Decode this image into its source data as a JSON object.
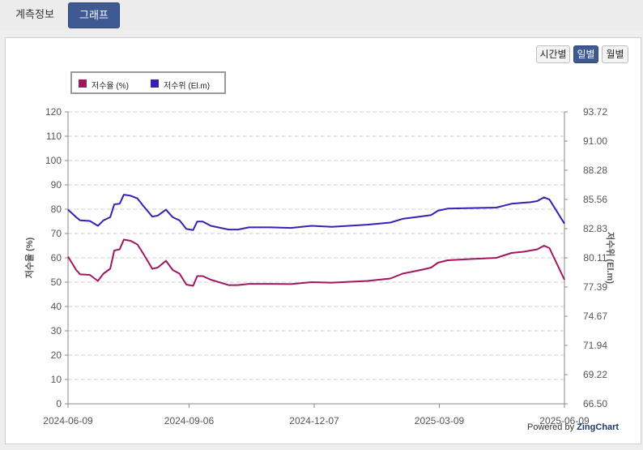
{
  "tabs": [
    {
      "label": "계측정보",
      "active": false
    },
    {
      "label": "그래프",
      "active": true
    }
  ],
  "period_buttons": [
    {
      "label": "시간별",
      "active": false
    },
    {
      "label": "일별",
      "active": true
    },
    {
      "label": "월별",
      "active": false
    }
  ],
  "powered_by": {
    "prefix": "Powered by",
    "brand": "ZingChart"
  },
  "colors": {
    "storage": "#a0175f",
    "level": "#3521b3",
    "active_tab": "#3f5a92"
  },
  "chart_data": {
    "type": "line",
    "legend_position": "top-left",
    "grid": true,
    "x_ticks": [
      "2024-06-09",
      "2024-09-06",
      "2024-12-07",
      "2025-03-09",
      "2025-06-09"
    ],
    "x_range": [
      "2024-06-09",
      "2025-06-09"
    ],
    "y_left": {
      "label": "저수율 (%)",
      "range": [
        0,
        120
      ],
      "ticks": [
        "0",
        "10",
        "20",
        "30",
        "40",
        "50",
        "60",
        "70",
        "80",
        "90",
        "100",
        "110",
        "120"
      ]
    },
    "y_right": {
      "label": "저수위 (El.m)",
      "range": [
        66.5,
        93.72
      ],
      "ticks": [
        "66.50",
        "69.22",
        "71.94",
        "74.67",
        "77.39",
        "80.11",
        "82.83",
        "85.56",
        "88.28",
        "91.00",
        "93.72"
      ]
    },
    "series": [
      {
        "name": "저수율 (%)",
        "axis": "left",
        "points": [
          [
            "2024-06-09",
            60.5
          ],
          [
            "2024-06-15",
            55
          ],
          [
            "2024-06-18",
            53.2
          ],
          [
            "2024-06-25",
            53
          ],
          [
            "2024-07-01",
            50.5
          ],
          [
            "2024-07-05",
            53.5
          ],
          [
            "2024-07-10",
            55.5
          ],
          [
            "2024-07-13",
            63
          ],
          [
            "2024-07-17",
            63.5
          ],
          [
            "2024-07-20",
            67.5
          ],
          [
            "2024-07-25",
            67
          ],
          [
            "2024-07-30",
            65.5
          ],
          [
            "2024-08-03",
            62
          ],
          [
            "2024-08-10",
            55.5
          ],
          [
            "2024-08-14",
            56
          ],
          [
            "2024-08-20",
            58.8
          ],
          [
            "2024-08-25",
            55
          ],
          [
            "2024-08-30",
            53.5
          ],
          [
            "2024-09-04",
            49
          ],
          [
            "2024-09-09",
            48.5
          ],
          [
            "2024-09-12",
            52.5
          ],
          [
            "2024-09-16",
            52.5
          ],
          [
            "2024-09-22",
            51
          ],
          [
            "2024-10-05",
            48.8
          ],
          [
            "2024-10-12",
            48.8
          ],
          [
            "2024-10-20",
            49.3
          ],
          [
            "2024-11-05",
            49.3
          ],
          [
            "2024-11-20",
            49.2
          ],
          [
            "2024-12-05",
            50
          ],
          [
            "2024-12-20",
            49.8
          ],
          [
            "2025-01-15",
            50.5
          ],
          [
            "2025-02-01",
            51.5
          ],
          [
            "2025-02-10",
            53.5
          ],
          [
            "2025-02-25",
            55.2
          ],
          [
            "2025-03-03",
            56
          ],
          [
            "2025-03-08",
            58
          ],
          [
            "2025-03-15",
            59
          ],
          [
            "2025-04-01",
            59.5
          ],
          [
            "2025-04-20",
            60
          ],
          [
            "2025-05-01",
            62
          ],
          [
            "2025-05-10",
            62.5
          ],
          [
            "2025-05-15",
            63
          ],
          [
            "2025-05-20",
            63.5
          ],
          [
            "2025-05-25",
            65
          ],
          [
            "2025-05-29",
            64
          ],
          [
            "2025-06-09",
            51
          ]
        ]
      },
      {
        "name": "저수위 (El.m)",
        "axis": "right",
        "points": [
          [
            "2024-06-09",
            84.6
          ],
          [
            "2024-06-15",
            83.9
          ],
          [
            "2024-06-18",
            83.6
          ],
          [
            "2024-06-25",
            83.55
          ],
          [
            "2024-07-01",
            83.1
          ],
          [
            "2024-07-05",
            83.6
          ],
          [
            "2024-07-10",
            83.9
          ],
          [
            "2024-07-13",
            85.1
          ],
          [
            "2024-07-17",
            85.15
          ],
          [
            "2024-07-20",
            86.0
          ],
          [
            "2024-07-25",
            85.9
          ],
          [
            "2024-07-30",
            85.65
          ],
          [
            "2024-08-03",
            85.0
          ],
          [
            "2024-08-10",
            83.95
          ],
          [
            "2024-08-14",
            84.05
          ],
          [
            "2024-08-20",
            84.6
          ],
          [
            "2024-08-25",
            83.9
          ],
          [
            "2024-08-30",
            83.6
          ],
          [
            "2024-09-04",
            82.8
          ],
          [
            "2024-09-09",
            82.7
          ],
          [
            "2024-09-12",
            83.5
          ],
          [
            "2024-09-16",
            83.5
          ],
          [
            "2024-09-22",
            83.1
          ],
          [
            "2024-10-05",
            82.75
          ],
          [
            "2024-10-12",
            82.75
          ],
          [
            "2024-10-20",
            82.95
          ],
          [
            "2024-11-05",
            82.95
          ],
          [
            "2024-11-20",
            82.9
          ],
          [
            "2024-12-05",
            83.1
          ],
          [
            "2024-12-20",
            83.0
          ],
          [
            "2025-01-15",
            83.2
          ],
          [
            "2025-02-01",
            83.4
          ],
          [
            "2025-02-10",
            83.75
          ],
          [
            "2025-02-25",
            84.0
          ],
          [
            "2025-03-03",
            84.1
          ],
          [
            "2025-03-08",
            84.5
          ],
          [
            "2025-03-15",
            84.7
          ],
          [
            "2025-04-01",
            84.75
          ],
          [
            "2025-04-20",
            84.8
          ],
          [
            "2025-05-01",
            85.15
          ],
          [
            "2025-05-10",
            85.25
          ],
          [
            "2025-05-15",
            85.3
          ],
          [
            "2025-05-20",
            85.4
          ],
          [
            "2025-05-25",
            85.75
          ],
          [
            "2025-05-29",
            85.55
          ],
          [
            "2025-06-09",
            83.3
          ]
        ]
      }
    ]
  }
}
